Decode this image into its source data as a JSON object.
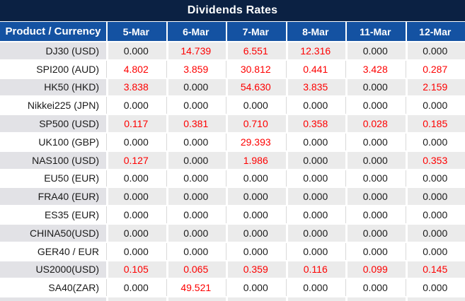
{
  "title": "Dividends Rates",
  "table": {
    "header": {
      "product": "Product / Currency",
      "dates": [
        "5-Mar",
        "6-Mar",
        "7-Mar",
        "8-Mar",
        "11-Mar",
        "12-Mar"
      ]
    },
    "rows": [
      {
        "product": "DJ30 (USD)",
        "values": [
          "0.000",
          "14.739",
          "6.551",
          "12.316",
          "0.000",
          "0.000"
        ]
      },
      {
        "product": "SPI200 (AUD)",
        "values": [
          "4.802",
          "3.859",
          "30.812",
          "0.441",
          "3.428",
          "0.287"
        ]
      },
      {
        "product": "HK50 (HKD)",
        "values": [
          "3.838",
          "0.000",
          "54.630",
          "3.835",
          "0.000",
          "2.159"
        ]
      },
      {
        "product": "Nikkei225 (JPN)",
        "values": [
          "0.000",
          "0.000",
          "0.000",
          "0.000",
          "0.000",
          "0.000"
        ]
      },
      {
        "product": "SP500 (USD)",
        "values": [
          "0.117",
          "0.381",
          "0.710",
          "0.358",
          "0.028",
          "0.185"
        ]
      },
      {
        "product": "UK100 (GBP)",
        "values": [
          "0.000",
          "0.000",
          "29.393",
          "0.000",
          "0.000",
          "0.000"
        ]
      },
      {
        "product": "NAS100 (USD)",
        "values": [
          "0.127",
          "0.000",
          "1.986",
          "0.000",
          "0.000",
          "0.353"
        ]
      },
      {
        "product": "EU50 (EUR)",
        "values": [
          "0.000",
          "0.000",
          "0.000",
          "0.000",
          "0.000",
          "0.000"
        ]
      },
      {
        "product": "FRA40 (EUR)",
        "values": [
          "0.000",
          "0.000",
          "0.000",
          "0.000",
          "0.000",
          "0.000"
        ]
      },
      {
        "product": "ES35 (EUR)",
        "values": [
          "0.000",
          "0.000",
          "0.000",
          "0.000",
          "0.000",
          "0.000"
        ]
      },
      {
        "product": "CHINA50(USD)",
        "values": [
          "0.000",
          "0.000",
          "0.000",
          "0.000",
          "0.000",
          "0.000"
        ]
      },
      {
        "product": "GER40 / EUR",
        "values": [
          "0.000",
          "0.000",
          "0.000",
          "0.000",
          "0.000",
          "0.000"
        ]
      },
      {
        "product": "US2000(USD)",
        "values": [
          "0.105",
          "0.065",
          "0.359",
          "0.116",
          "0.099",
          "0.145"
        ]
      },
      {
        "product": "SA40(ZAR)",
        "values": [
          "0.000",
          "49.521",
          "0.000",
          "0.000",
          "0.000",
          "0.000"
        ]
      }
    ]
  },
  "colors": {
    "title_bar_bg": "#0b2143",
    "header_bg": "#1452a2",
    "header_text": "#ffffff",
    "row_bg": "#ffffff",
    "row_alt_bg": "#ebebeb",
    "row_alt_label_bg": "#e2e2e6",
    "grid_line": "#d9d9d9",
    "value_red": "#fe0000",
    "value_black": "#1a1a1a"
  }
}
